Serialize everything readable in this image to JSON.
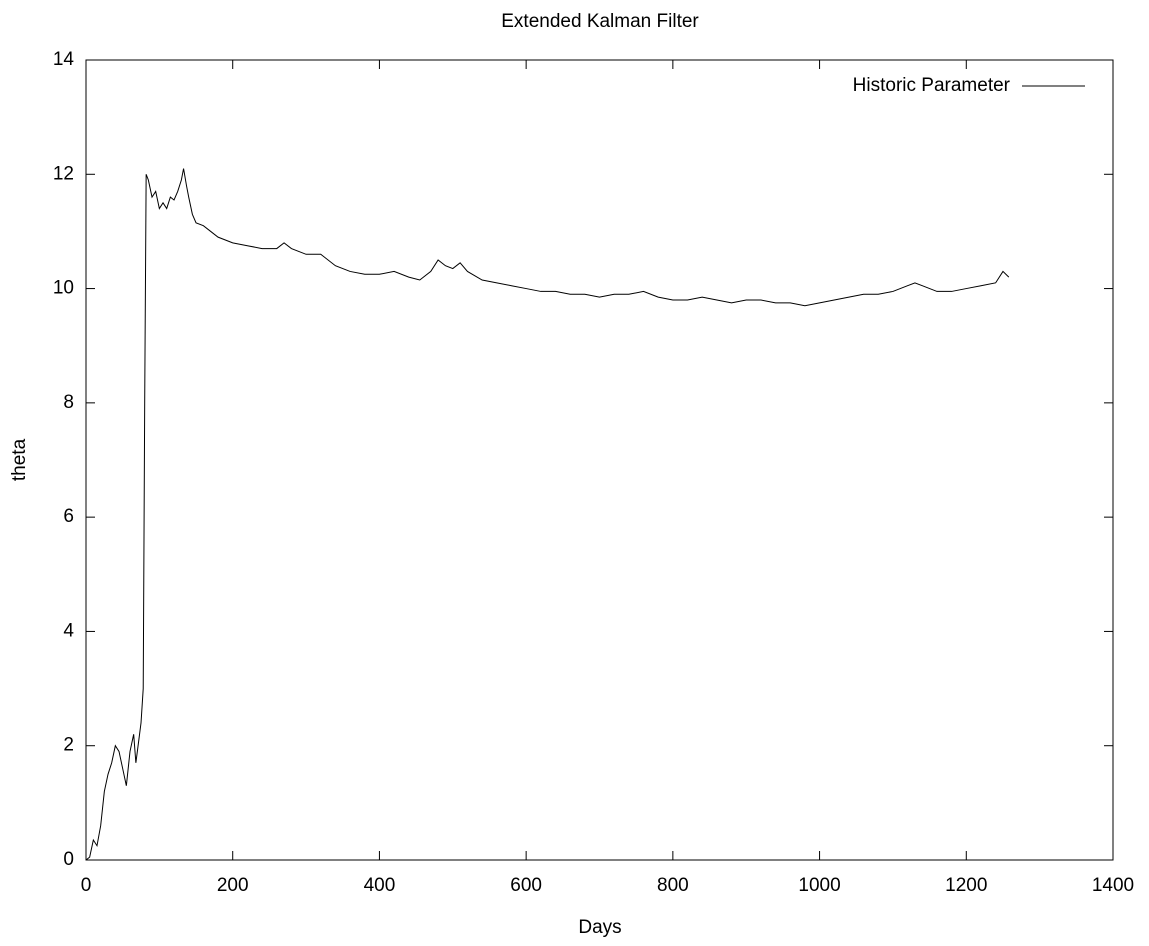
{
  "chart_data": {
    "type": "line",
    "title": "Extended Kalman Filter",
    "xlabel": "Days",
    "ylabel": "theta",
    "x": [
      0,
      5,
      10,
      15,
      20,
      25,
      30,
      35,
      40,
      45,
      50,
      55,
      60,
      65,
      68,
      72,
      75,
      78,
      80,
      82,
      85,
      90,
      95,
      100,
      105,
      110,
      115,
      120,
      125,
      130,
      133,
      137,
      140,
      145,
      150,
      160,
      170,
      180,
      200,
      220,
      240,
      260,
      270,
      280,
      300,
      320,
      340,
      360,
      380,
      400,
      420,
      440,
      455,
      470,
      480,
      490,
      500,
      510,
      520,
      540,
      560,
      580,
      600,
      620,
      640,
      660,
      680,
      700,
      720,
      740,
      760,
      780,
      800,
      820,
      840,
      860,
      880,
      900,
      920,
      940,
      960,
      980,
      1000,
      1020,
      1040,
      1060,
      1080,
      1100,
      1120,
      1130,
      1140,
      1160,
      1180,
      1200,
      1220,
      1240,
      1250,
      1258
    ],
    "series": [
      {
        "name": "Historic Parameter",
        "color": "#000000",
        "values": [
          0.0,
          0.05,
          0.35,
          0.25,
          0.6,
          1.2,
          1.5,
          1.7,
          2.0,
          1.9,
          1.6,
          1.3,
          1.9,
          2.2,
          1.7,
          2.1,
          2.4,
          3.0,
          8.0,
          12.0,
          11.9,
          11.6,
          11.7,
          11.4,
          11.5,
          11.4,
          11.6,
          11.55,
          11.7,
          11.9,
          12.1,
          11.8,
          11.6,
          11.3,
          11.15,
          11.1,
          11.0,
          10.9,
          10.8,
          10.75,
          10.7,
          10.7,
          10.8,
          10.7,
          10.6,
          10.6,
          10.4,
          10.3,
          10.25,
          10.25,
          10.3,
          10.2,
          10.15,
          10.3,
          10.5,
          10.4,
          10.35,
          10.45,
          10.3,
          10.15,
          10.1,
          10.05,
          10.0,
          9.95,
          9.95,
          9.9,
          9.9,
          9.85,
          9.9,
          9.9,
          9.95,
          9.85,
          9.8,
          9.8,
          9.85,
          9.8,
          9.75,
          9.8,
          9.8,
          9.75,
          9.75,
          9.7,
          9.75,
          9.8,
          9.85,
          9.9,
          9.9,
          9.95,
          10.05,
          10.1,
          10.05,
          9.95,
          9.95,
          10.0,
          10.05,
          10.1,
          10.3,
          10.2
        ]
      }
    ],
    "xlim": [
      0,
      1400
    ],
    "xticks": [
      0,
      200,
      400,
      600,
      800,
      1000,
      1200,
      1400
    ],
    "ylim": [
      0,
      14
    ],
    "yticks": [
      0,
      2,
      4,
      6,
      8,
      10,
      12,
      14
    ],
    "legend": "upper right"
  }
}
